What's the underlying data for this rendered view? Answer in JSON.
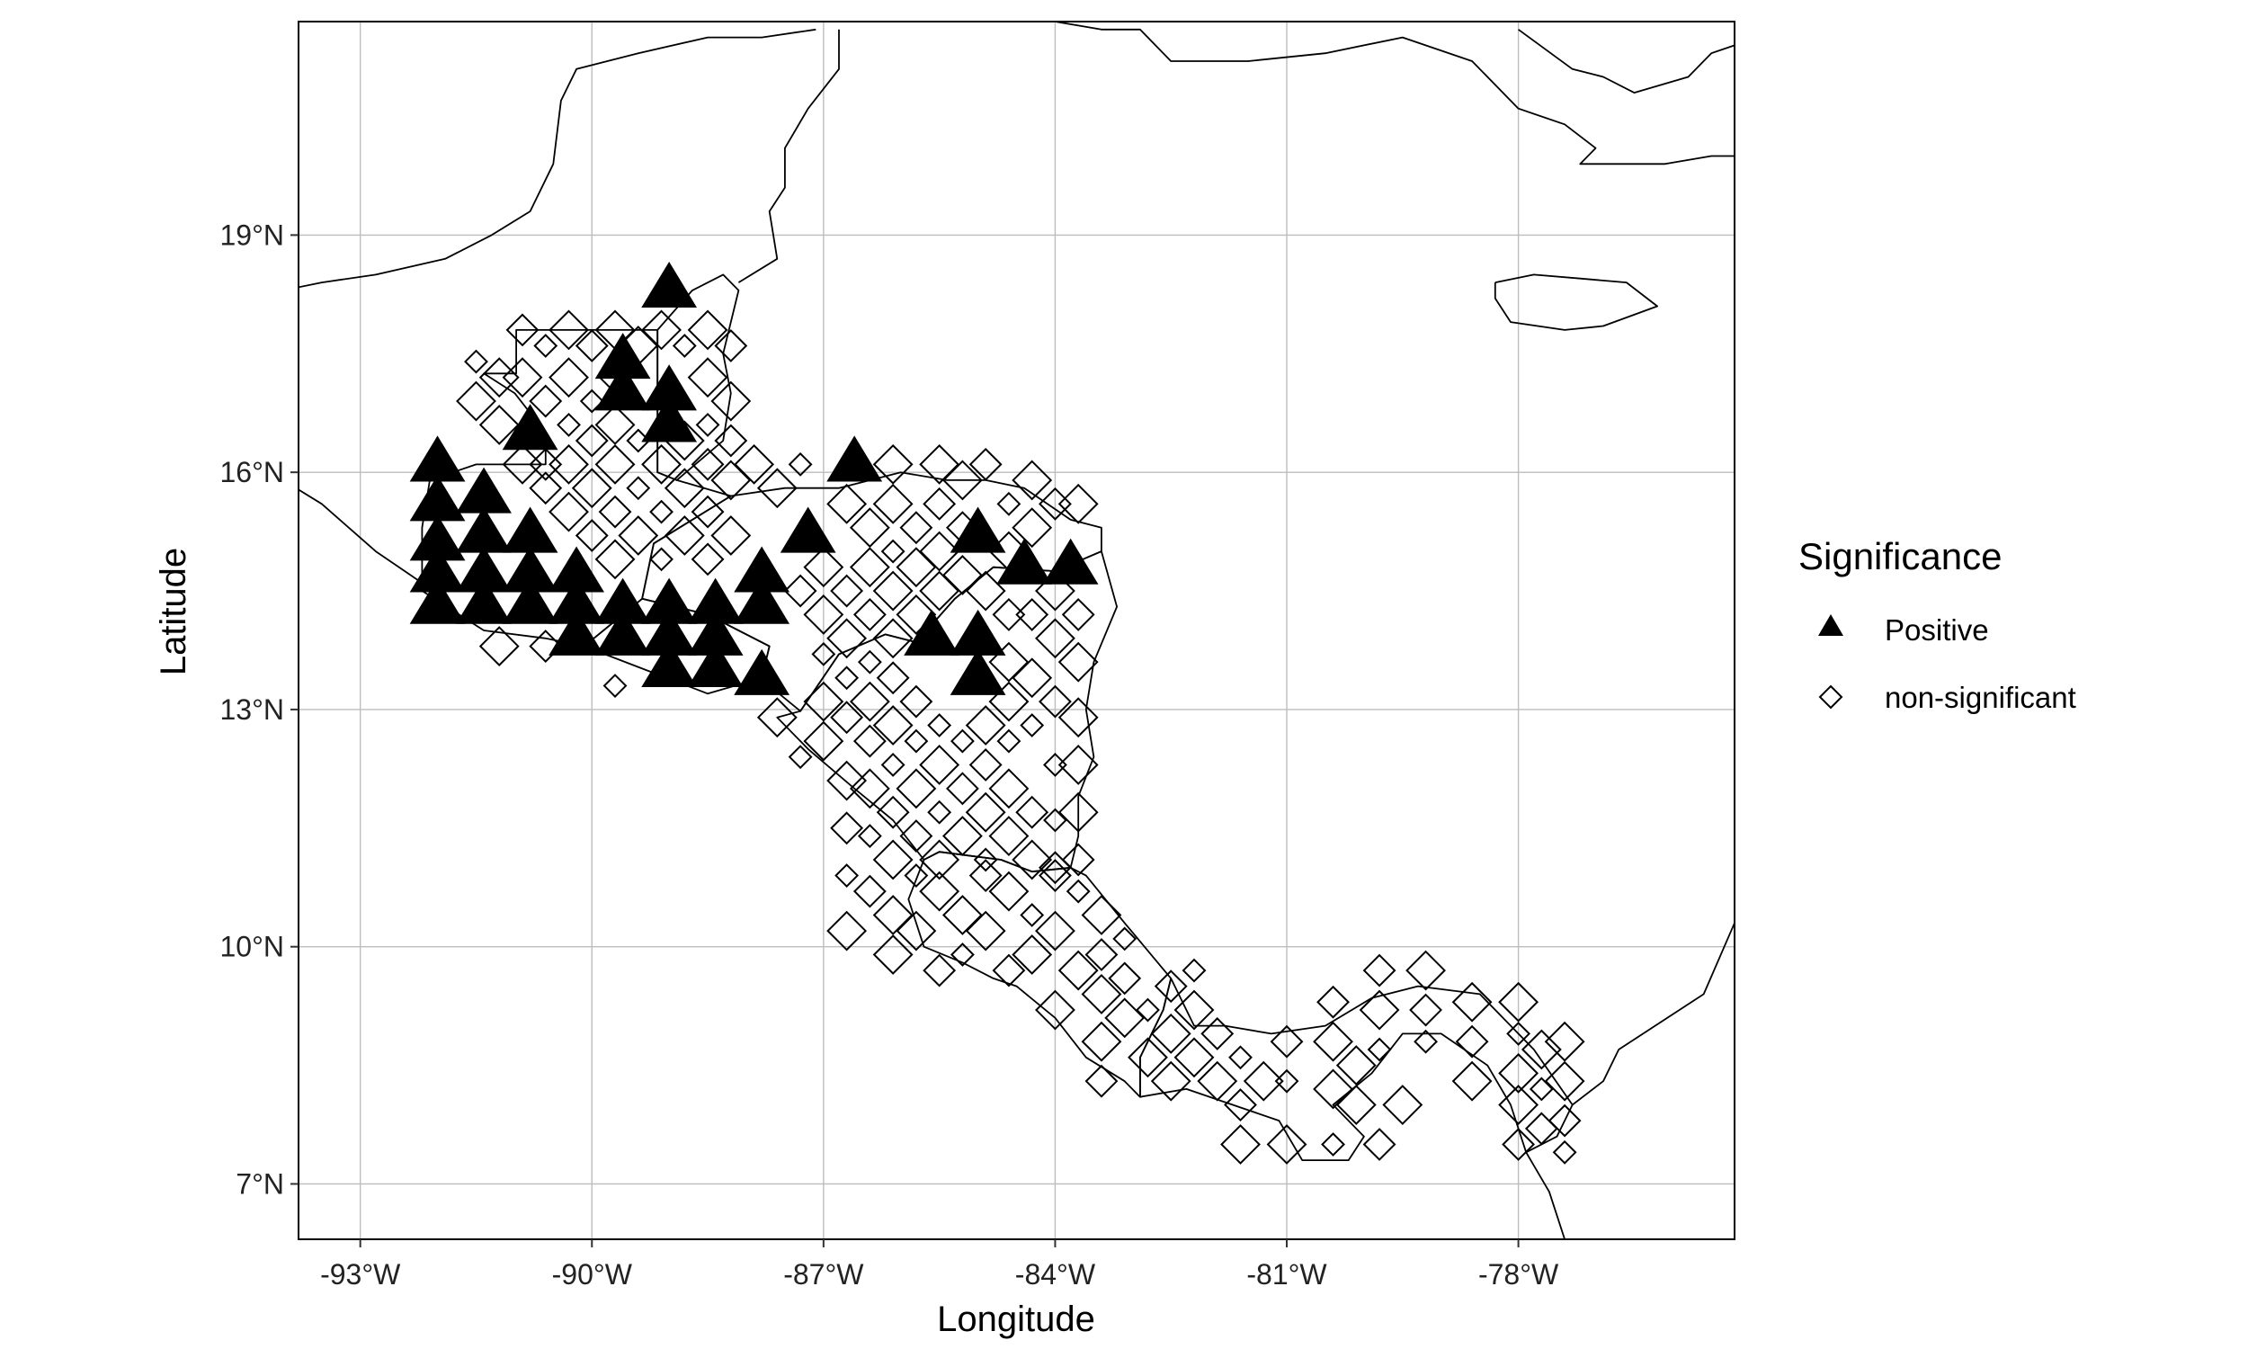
{
  "chart_data": {
    "type": "scatter",
    "title": "",
    "xlabel": "Longitude",
    "ylabel": "Latitude",
    "xlim": [
      -93.8,
      -75.2
    ],
    "ylim": [
      6.3,
      21.7
    ],
    "grid": true,
    "x_ticks": [
      {
        "value": -93,
        "label": "-93°W"
      },
      {
        "value": -90,
        "label": "-90°W"
      },
      {
        "value": -87,
        "label": "-87°W"
      },
      {
        "value": -84,
        "label": "-84°W"
      },
      {
        "value": -81,
        "label": "-81°W"
      },
      {
        "value": -78,
        "label": "-78°W"
      }
    ],
    "y_ticks": [
      {
        "value": 7,
        "label": "7°N"
      },
      {
        "value": 10,
        "label": "10°N"
      },
      {
        "value": 13,
        "label": "13°N"
      },
      {
        "value": 16,
        "label": "16°N"
      },
      {
        "value": 19,
        "label": "19°N"
      }
    ],
    "legend": {
      "title": "Significance",
      "placement": "right",
      "entries": [
        {
          "name": "Positive",
          "marker": "filled-triangle"
        },
        {
          "name": "non-significant",
          "marker": "open-diamond"
        }
      ]
    },
    "positive": [
      [
        -92.0,
        16.1
      ],
      [
        -92.0,
        15.6
      ],
      [
        -92.0,
        15.1
      ],
      [
        -92.0,
        14.7
      ],
      [
        -92.0,
        14.3
      ],
      [
        -91.4,
        15.7
      ],
      [
        -91.4,
        15.2
      ],
      [
        -91.4,
        14.7
      ],
      [
        -91.4,
        14.3
      ],
      [
        -90.8,
        16.5
      ],
      [
        -90.8,
        15.2
      ],
      [
        -90.8,
        14.7
      ],
      [
        -90.8,
        14.3
      ],
      [
        -90.2,
        14.7
      ],
      [
        -90.2,
        14.3
      ],
      [
        -90.2,
        13.9
      ],
      [
        -89.6,
        17.4
      ],
      [
        -89.6,
        17.0
      ],
      [
        -89.6,
        14.3
      ],
      [
        -89.6,
        13.9
      ],
      [
        -89.0,
        18.3
      ],
      [
        -89.0,
        17.0
      ],
      [
        -89.0,
        16.6
      ],
      [
        -89.0,
        14.3
      ],
      [
        -89.0,
        13.9
      ],
      [
        -89.0,
        13.5
      ],
      [
        -88.4,
        14.3
      ],
      [
        -88.4,
        13.9
      ],
      [
        -88.4,
        13.5
      ],
      [
        -87.8,
        14.7
      ],
      [
        -87.8,
        14.3
      ],
      [
        -87.8,
        13.4
      ],
      [
        -87.2,
        15.2
      ],
      [
        -86.6,
        16.1
      ],
      [
        -85.6,
        13.9
      ],
      [
        -85.0,
        15.2
      ],
      [
        -85.0,
        13.9
      ],
      [
        -85.0,
        13.4
      ],
      [
        -84.4,
        14.8
      ],
      [
        -83.8,
        14.8
      ]
    ],
    "non_significant": [
      [
        -91.5,
        17.4
      ],
      [
        -91.5,
        16.9
      ],
      [
        -91.2,
        17.2
      ],
      [
        -90.9,
        17.8
      ],
      [
        -90.9,
        17.2
      ],
      [
        -90.6,
        17.6
      ],
      [
        -90.6,
        16.9
      ],
      [
        -90.3,
        17.8
      ],
      [
        -90.3,
        17.2
      ],
      [
        -90.0,
        17.6
      ],
      [
        -90.0,
        16.9
      ],
      [
        -89.7,
        17.8
      ],
      [
        -89.7,
        17.2
      ],
      [
        -89.4,
        17.6
      ],
      [
        -89.1,
        17.8
      ],
      [
        -88.8,
        17.6
      ],
      [
        -88.5,
        17.8
      ],
      [
        -88.5,
        17.2
      ],
      [
        -88.2,
        17.6
      ],
      [
        -88.2,
        16.9
      ],
      [
        -88.5,
        16.6
      ],
      [
        -88.2,
        16.4
      ],
      [
        -91.2,
        16.6
      ],
      [
        -90.9,
        16.1
      ],
      [
        -90.6,
        16.1
      ],
      [
        -90.3,
        16.6
      ],
      [
        -90.3,
        16.1
      ],
      [
        -90.0,
        16.4
      ],
      [
        -89.7,
        16.6
      ],
      [
        -89.7,
        16.1
      ],
      [
        -89.4,
        16.4
      ],
      [
        -89.1,
        16.1
      ],
      [
        -88.8,
        16.4
      ],
      [
        -88.5,
        16.1
      ],
      [
        -88.2,
        15.9
      ],
      [
        -89.4,
        15.8
      ],
      [
        -89.7,
        15.5
      ],
      [
        -90.0,
        15.8
      ],
      [
        -90.3,
        15.5
      ],
      [
        -90.6,
        15.8
      ],
      [
        -89.1,
        15.5
      ],
      [
        -88.8,
        15.8
      ],
      [
        -88.5,
        15.5
      ],
      [
        -87.9,
        16.1
      ],
      [
        -87.6,
        15.8
      ],
      [
        -87.3,
        16.1
      ],
      [
        -89.4,
        15.2
      ],
      [
        -89.7,
        14.9
      ],
      [
        -90.0,
        15.2
      ],
      [
        -88.8,
        15.2
      ],
      [
        -89.1,
        14.9
      ],
      [
        -88.5,
        14.9
      ],
      [
        -88.2,
        15.2
      ],
      [
        -91.2,
        13.8
      ],
      [
        -90.6,
        13.8
      ],
      [
        -89.7,
        13.3
      ],
      [
        -87.6,
        12.9
      ],
      [
        -87.3,
        14.5
      ],
      [
        -87.0,
        14.8
      ],
      [
        -87.0,
        14.2
      ],
      [
        -87.0,
        13.7
      ],
      [
        -87.0,
        13.1
      ],
      [
        -86.7,
        15.6
      ],
      [
        -86.7,
        14.5
      ],
      [
        -86.7,
        13.9
      ],
      [
        -86.7,
        13.4
      ],
      [
        -86.7,
        12.9
      ],
      [
        -86.4,
        15.3
      ],
      [
        -86.4,
        14.8
      ],
      [
        -86.4,
        14.2
      ],
      [
        -86.4,
        13.6
      ],
      [
        -86.4,
        13.1
      ],
      [
        -86.4,
        12.6
      ],
      [
        -86.1,
        16.1
      ],
      [
        -86.1,
        15.6
      ],
      [
        -86.1,
        15.0
      ],
      [
        -86.1,
        14.5
      ],
      [
        -86.1,
        13.9
      ],
      [
        -86.1,
        13.4
      ],
      [
        -86.1,
        12.8
      ],
      [
        -86.1,
        12.3
      ],
      [
        -85.8,
        15.3
      ],
      [
        -85.8,
        14.8
      ],
      [
        -85.8,
        14.2
      ],
      [
        -85.8,
        13.1
      ],
      [
        -85.8,
        12.6
      ],
      [
        -85.5,
        16.1
      ],
      [
        -85.5,
        15.6
      ],
      [
        -85.5,
        15.0
      ],
      [
        -85.5,
        14.5
      ],
      [
        -85.5,
        12.8
      ],
      [
        -85.5,
        12.3
      ],
      [
        -85.2,
        15.9
      ],
      [
        -85.2,
        15.3
      ],
      [
        -85.2,
        14.7
      ],
      [
        -85.2,
        12.6
      ],
      [
        -84.9,
        16.1
      ],
      [
        -84.9,
        14.5
      ],
      [
        -84.9,
        12.8
      ],
      [
        -84.9,
        12.3
      ],
      [
        -84.6,
        15.6
      ],
      [
        -84.6,
        15.0
      ],
      [
        -84.6,
        14.2
      ],
      [
        -84.6,
        13.6
      ],
      [
        -84.6,
        13.1
      ],
      [
        -84.6,
        12.6
      ],
      [
        -84.3,
        15.9
      ],
      [
        -84.3,
        15.3
      ],
      [
        -84.3,
        14.2
      ],
      [
        -84.3,
        13.4
      ],
      [
        -84.3,
        12.8
      ],
      [
        -84.0,
        15.6
      ],
      [
        -84.0,
        14.5
      ],
      [
        -84.0,
        13.9
      ],
      [
        -84.0,
        13.1
      ],
      [
        -84.0,
        12.3
      ],
      [
        -83.7,
        15.6
      ],
      [
        -83.7,
        14.2
      ],
      [
        -83.7,
        13.6
      ],
      [
        -83.7,
        12.9
      ],
      [
        -87.3,
        12.4
      ],
      [
        -87.0,
        12.6
      ],
      [
        -86.7,
        12.1
      ],
      [
        -86.7,
        11.5
      ],
      [
        -86.4,
        12.0
      ],
      [
        -86.4,
        11.4
      ],
      [
        -86.1,
        11.7
      ],
      [
        -86.1,
        11.1
      ],
      [
        -85.8,
        12.0
      ],
      [
        -85.8,
        11.4
      ],
      [
        -85.5,
        11.7
      ],
      [
        -85.5,
        11.1
      ],
      [
        -85.2,
        12.0
      ],
      [
        -85.2,
        11.4
      ],
      [
        -84.9,
        11.7
      ],
      [
        -84.9,
        11.1
      ],
      [
        -84.6,
        12.0
      ],
      [
        -84.6,
        11.4
      ],
      [
        -84.3,
        11.7
      ],
      [
        -84.3,
        11.1
      ],
      [
        -84.0,
        11.6
      ],
      [
        -84.0,
        11.0
      ],
      [
        -83.7,
        12.3
      ],
      [
        -83.7,
        11.7
      ],
      [
        -83.7,
        11.1
      ],
      [
        -86.7,
        10.9
      ],
      [
        -86.7,
        10.2
      ],
      [
        -86.4,
        10.7
      ],
      [
        -86.1,
        10.4
      ],
      [
        -86.1,
        9.9
      ],
      [
        -85.8,
        10.9
      ],
      [
        -85.8,
        10.2
      ],
      [
        -85.5,
        10.7
      ],
      [
        -85.5,
        9.7
      ],
      [
        -85.2,
        10.4
      ],
      [
        -85.2,
        9.9
      ],
      [
        -84.9,
        10.9
      ],
      [
        -84.9,
        10.2
      ],
      [
        -84.6,
        10.7
      ],
      [
        -84.6,
        9.7
      ],
      [
        -84.3,
        10.4
      ],
      [
        -84.3,
        9.9
      ],
      [
        -84.0,
        10.9
      ],
      [
        -84.0,
        10.2
      ],
      [
        -84.0,
        9.2
      ],
      [
        -83.7,
        10.7
      ],
      [
        -83.7,
        9.7
      ],
      [
        -83.4,
        10.4
      ],
      [
        -83.4,
        9.9
      ],
      [
        -83.4,
        9.4
      ],
      [
        -83.1,
        10.1
      ],
      [
        -83.1,
        9.6
      ],
      [
        -83.1,
        9.1
      ],
      [
        -83.4,
        8.8
      ],
      [
        -83.4,
        8.3
      ],
      [
        -82.8,
        9.2
      ],
      [
        -82.8,
        8.6
      ],
      [
        -82.5,
        9.5
      ],
      [
        -82.5,
        8.9
      ],
      [
        -82.5,
        8.3
      ],
      [
        -82.2,
        9.7
      ],
      [
        -82.2,
        9.2
      ],
      [
        -82.2,
        8.6
      ],
      [
        -81.9,
        8.9
      ],
      [
        -81.9,
        8.3
      ],
      [
        -81.6,
        8.6
      ],
      [
        -81.6,
        8.0
      ],
      [
        -81.6,
        7.5
      ],
      [
        -81.3,
        8.3
      ],
      [
        -81.0,
        8.8
      ],
      [
        -81.0,
        8.3
      ],
      [
        -81.0,
        7.5
      ],
      [
        -80.4,
        9.3
      ],
      [
        -80.4,
        8.8
      ],
      [
        -80.4,
        8.2
      ],
      [
        -80.4,
        7.5
      ],
      [
        -80.1,
        8.5
      ],
      [
        -80.1,
        8.0
      ],
      [
        -79.8,
        9.7
      ],
      [
        -79.8,
        9.2
      ],
      [
        -79.8,
        8.7
      ],
      [
        -79.8,
        7.5
      ],
      [
        -79.5,
        8.0
      ],
      [
        -79.2,
        9.7
      ],
      [
        -79.2,
        9.2
      ],
      [
        -79.2,
        8.8
      ],
      [
        -78.6,
        9.3
      ],
      [
        -78.6,
        8.8
      ],
      [
        -78.6,
        8.3
      ],
      [
        -78.0,
        9.3
      ],
      [
        -78.0,
        8.9
      ],
      [
        -78.0,
        8.4
      ],
      [
        -78.0,
        8.0
      ],
      [
        -78.0,
        7.5
      ],
      [
        -77.7,
        8.7
      ],
      [
        -77.7,
        8.2
      ],
      [
        -77.7,
        7.7
      ],
      [
        -77.4,
        8.8
      ],
      [
        -77.4,
        8.3
      ],
      [
        -77.4,
        7.8
      ],
      [
        -77.4,
        7.4
      ]
    ]
  }
}
